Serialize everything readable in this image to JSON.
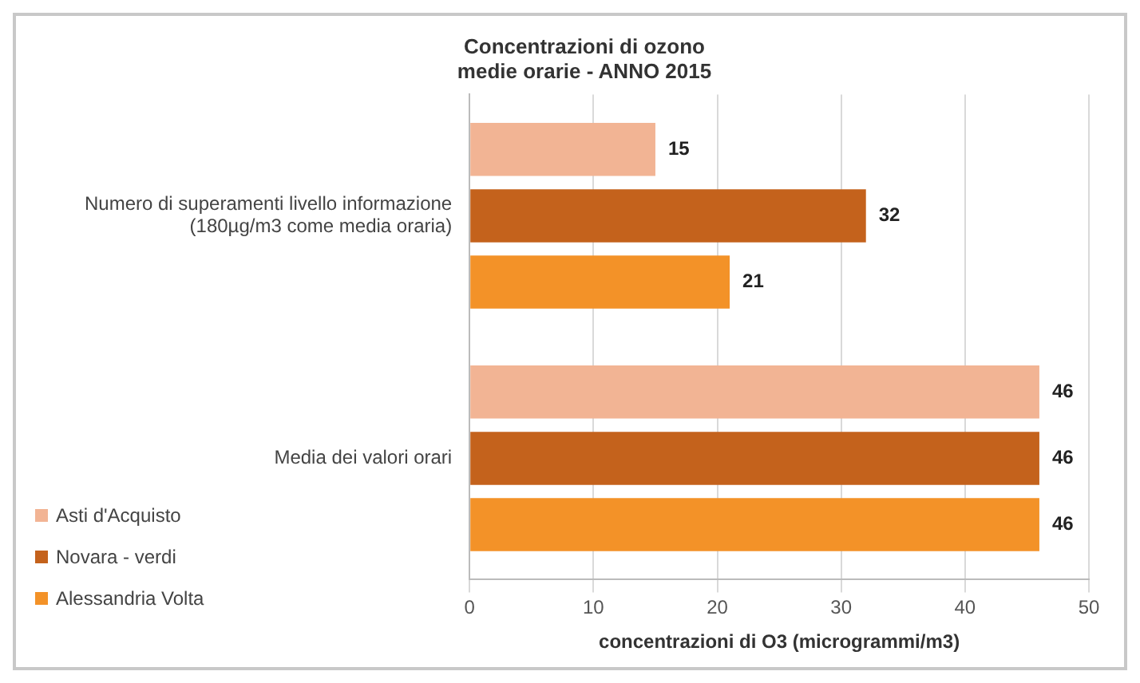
{
  "chart_data": {
    "type": "bar",
    "orientation": "horizontal",
    "title": "Concentrazioni di ozono\nmedie orarie - ANNO 2015",
    "xlabel": "concentrazioni di O3 (microgrammi/m3)",
    "categories": [
      "Numero di superamenti livello informazione (180µg/m3 come media oraria)",
      "Media dei valori orari"
    ],
    "series": [
      {
        "name": "Asti d'Acquisto",
        "color": "#f2b494",
        "values": [
          15,
          46
        ]
      },
      {
        "name": "Novara - verdi",
        "color": "#c4621c",
        "values": [
          32,
          46
        ]
      },
      {
        "name": "Alessandria Volta",
        "color": "#f39228",
        "values": [
          21,
          46
        ]
      }
    ],
    "xlim": [
      0,
      50
    ],
    "xticks": [
      0,
      10,
      20,
      30,
      40,
      50
    ],
    "grid": "x",
    "legend": "bottom left",
    "data_labels": true
  }
}
